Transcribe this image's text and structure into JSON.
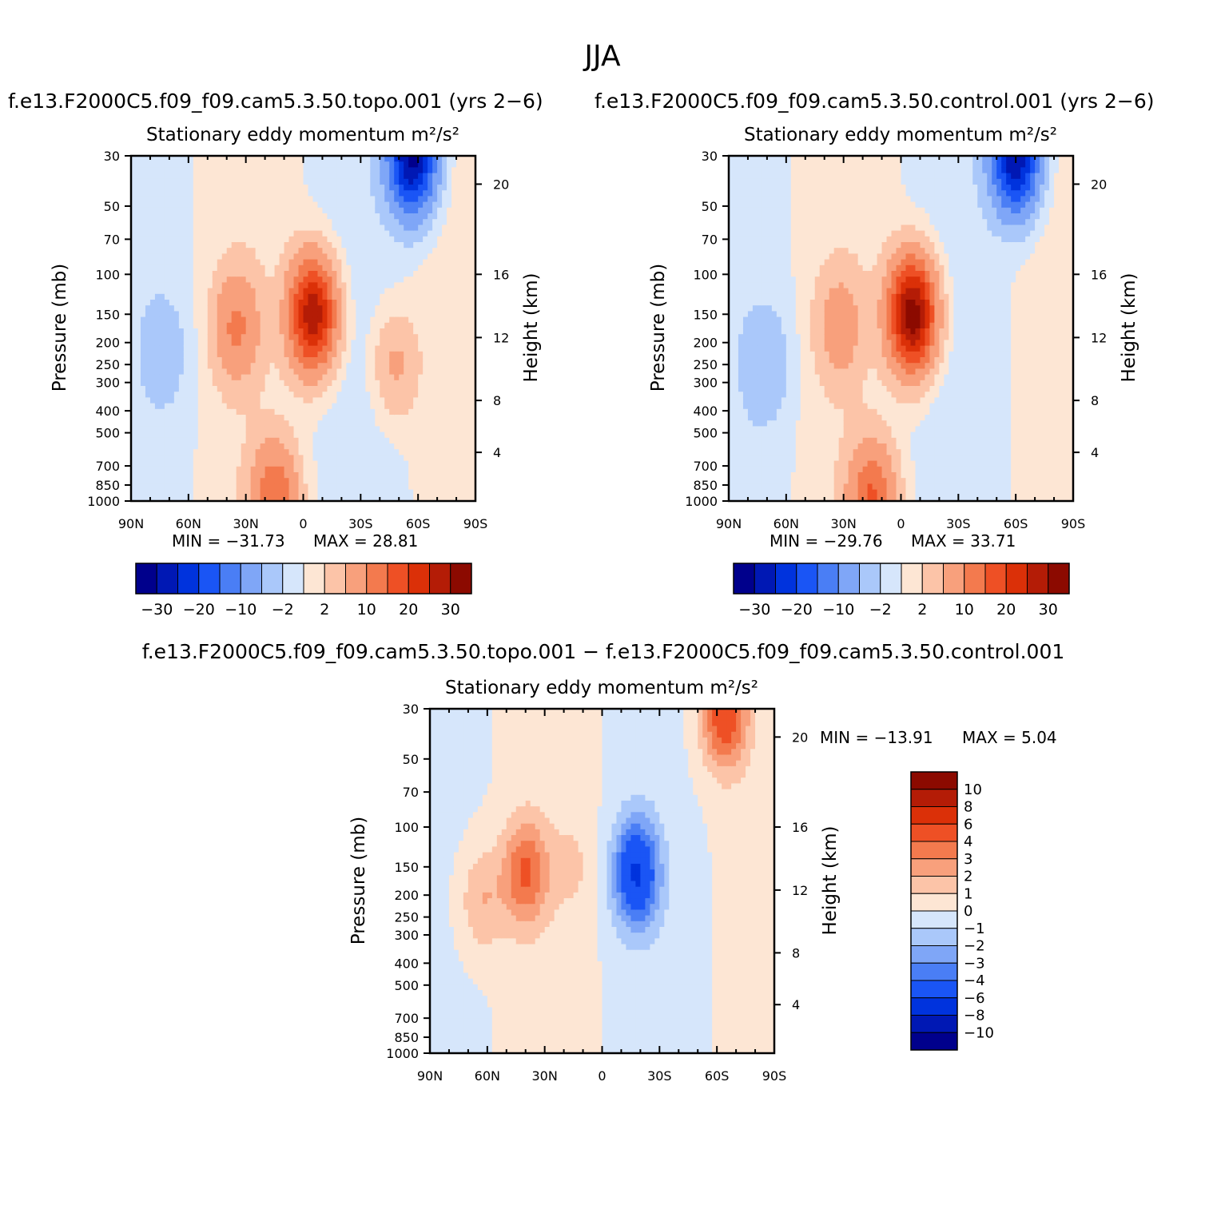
{
  "page": {
    "title": "JJA"
  },
  "colors": {
    "main_scale": [
      "#00008c",
      "#0018b4",
      "#0033dd",
      "#1a55f5",
      "#4a7ef5",
      "#7fa6f7",
      "#aac8fa",
      "#d6e6fb",
      "#fde6d4",
      "#fcc4a8",
      "#f8a07c",
      "#f37a4e",
      "#ee5025",
      "#db3008",
      "#b41c06",
      "#8c0a00"
    ],
    "diff_scale": [
      "#00008c",
      "#0018b4",
      "#0033dd",
      "#1a55f5",
      "#4a7ef5",
      "#7fa6f7",
      "#aac8fa",
      "#d6e6fb",
      "#fde6d4",
      "#fcc4a8",
      "#f8a07c",
      "#f37a4e",
      "#ee5025",
      "#db3008",
      "#b41c06",
      "#8c0a00"
    ]
  },
  "chart_data": [
    {
      "type": "heatmap",
      "case_title": "f.e13.F2000C5.f09_f09.cam5.3.50.topo.001  (yrs  2−6)",
      "title": "Stationary  eddy  momentum   m²/s²",
      "xlabel": "",
      "ylabel": "Pressure  (mb)",
      "y2label": "Height  (km)",
      "x_ticks": [
        "90N",
        "60N",
        "30N",
        "0",
        "30S",
        "60S",
        "90S"
      ],
      "y_ticks": [
        "30",
        "50",
        "70",
        "100",
        "150",
        "200",
        "250",
        "300",
        "400",
        "500",
        "700",
        "850",
        "1000"
      ],
      "y2_ticks": [
        "20",
        "16",
        "12",
        "8",
        "4"
      ],
      "ylim": [
        1000,
        30
      ],
      "min_label": "MIN  =  −31.73",
      "max_label": "MAX  =   28.81",
      "min": -31.73,
      "max": 28.81,
      "colorbar_ticks": [
        "−30",
        "−20",
        "−10",
        "−2",
        "2",
        "10",
        "20",
        "30"
      ],
      "features": [
        {
          "lat": -5,
          "p": 150,
          "value": 28.81
        },
        {
          "lat": -57,
          "p": 30,
          "value": -31.73
        },
        {
          "lat": 35,
          "p": 170,
          "value": 10
        },
        {
          "lat": 15,
          "p": 980,
          "value": 14
        },
        {
          "lat": -48,
          "p": 250,
          "value": 6
        },
        {
          "lat": 72,
          "p": 220,
          "value": -3
        }
      ]
    },
    {
      "type": "heatmap",
      "case_title": "f.e13.F2000C5.f09_f09.cam5.3.50.control.001  (yrs  2−6)",
      "title": "Stationary  eddy  momentum   m²/s²",
      "xlabel": "",
      "ylabel": "Pressure  (mb)",
      "y2label": "Height  (km)",
      "x_ticks": [
        "90N",
        "60N",
        "30N",
        "0",
        "30S",
        "60S",
        "90S"
      ],
      "y_ticks": [
        "30",
        "50",
        "70",
        "100",
        "150",
        "200",
        "250",
        "300",
        "400",
        "500",
        "700",
        "850",
        "1000"
      ],
      "y2_ticks": [
        "20",
        "16",
        "12",
        "8",
        "4"
      ],
      "ylim": [
        1000,
        30
      ],
      "min_label": "MIN  =  −29.76",
      "max_label": "MAX  =   33.71",
      "min": -29.76,
      "max": 33.71,
      "colorbar_ticks": [
        "−30",
        "−20",
        "−10",
        "−2",
        "2",
        "10",
        "20",
        "30"
      ],
      "features": [
        {
          "lat": -6,
          "p": 150,
          "value": 33.71
        },
        {
          "lat": -60,
          "p": 30,
          "value": -29.76
        },
        {
          "lat": 32,
          "p": 170,
          "value": 7
        },
        {
          "lat": 15,
          "p": 980,
          "value": 15
        },
        {
          "lat": 70,
          "p": 250,
          "value": -4
        }
      ]
    },
    {
      "type": "heatmap",
      "case_title": "f.e13.F2000C5.f09_f09.cam5.3.50.topo.001  −  f.e13.F2000C5.f09_f09.cam5.3.50.control.001",
      "title": "Stationary  eddy  momentum   m²/s²",
      "xlabel": "",
      "ylabel": "Pressure  (mb)",
      "y2label": "Height  (km)",
      "x_ticks": [
        "90N",
        "60N",
        "30N",
        "0",
        "30S",
        "60S",
        "90S"
      ],
      "y_ticks": [
        "30",
        "50",
        "70",
        "100",
        "150",
        "200",
        "250",
        "300",
        "400",
        "500",
        "700",
        "850",
        "1000"
      ],
      "y2_ticks": [
        "20",
        "16",
        "12",
        "8",
        "4"
      ],
      "ylim": [
        1000,
        30
      ],
      "min_label": "MIN  =  −13.91",
      "max_label": "MAX  =     5.04",
      "min": -13.91,
      "max": 5.04,
      "colorbar_ticks": [
        "10",
        "8",
        "6",
        "4",
        "3",
        "2",
        "1",
        "0",
        "−1",
        "−2",
        "−3",
        "−4",
        "−6",
        "−8",
        "−10"
      ],
      "features": [
        {
          "lat": -18,
          "p": 160,
          "value": -6
        },
        {
          "lat": 40,
          "p": 160,
          "value": 4
        },
        {
          "lat": 63,
          "p": 210,
          "value": 2
        },
        {
          "lat": -64,
          "p": 32,
          "value": 5.04
        },
        {
          "lat": 15,
          "p": 150,
          "value": 1
        }
      ]
    }
  ]
}
